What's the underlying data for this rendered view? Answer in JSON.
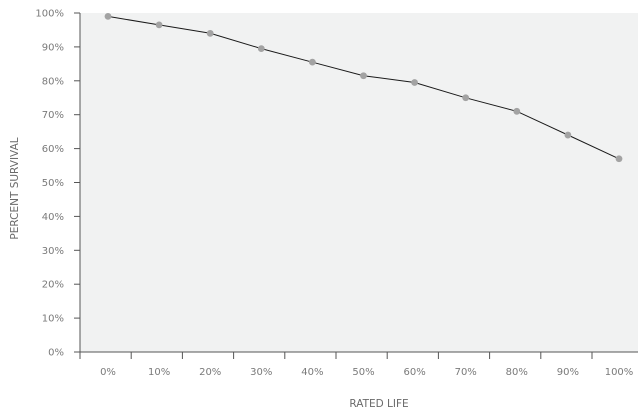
{
  "chart_data": {
    "type": "line",
    "title": "",
    "xlabel": "RATED LIFE",
    "ylabel": "PERCENT SURVIVAL",
    "categories": [
      "0%",
      "10%",
      "20%",
      "30%",
      "40%",
      "50%",
      "60%",
      "70%",
      "80%",
      "90%",
      "100%"
    ],
    "y_ticks": [
      "0%",
      "10%",
      "20%",
      "30%",
      "40%",
      "50%",
      "60%",
      "70%",
      "80%",
      "90%",
      "100%"
    ],
    "ylim": [
      0,
      100
    ],
    "grid": false,
    "series": [
      {
        "values": [
          99,
          96.5,
          94,
          89.5,
          85.5,
          81.5,
          79.5,
          75,
          71,
          64,
          57
        ]
      }
    ],
    "colors": {
      "plot_background": "#f1f2f2",
      "line": "#1a1a1a",
      "marker": "#a3a3a3",
      "axis": "#555555",
      "tick_text": "#7a7a7a",
      "axis_title": "#6a6a6a"
    }
  }
}
